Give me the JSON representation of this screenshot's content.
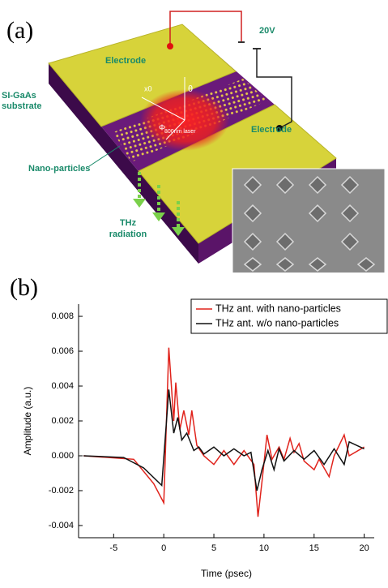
{
  "panel_a": {
    "label": "(a)",
    "electrode_left": "Electrode",
    "electrode_right": "Electrode",
    "substrate": "SI-GaAs substrate",
    "nano": "Nano-particles",
    "radiation": "THz radiation",
    "voltage": "20V",
    "laser": "800nm laser",
    "x0": "x0",
    "theta": "θ",
    "phi": "Φ"
  },
  "chart_data": {
    "type": "line",
    "panel_label": "(b)",
    "x_label": "Time (psec)",
    "y_label": "Amplitude (a.u.)",
    "xlim": [
      -8.5,
      21
    ],
    "xticks": [
      -5,
      0,
      5,
      10,
      15,
      20
    ],
    "ylim": [
      -0.0047,
      0.0087
    ],
    "yticks": [
      -0.004,
      -0.002,
      {
        "value": 0,
        "label": "0.000"
      },
      0.002,
      0.004,
      0.006,
      0.008
    ],
    "legend": "upper right",
    "series": [
      {
        "name": "THz ant. with nano-particles",
        "color": "#e0231c",
        "x": [
          -8,
          -3,
          -1,
          0,
          0.5,
          1,
          1.2,
          1.6,
          2,
          2.5,
          2.8,
          3.3,
          4,
          5,
          6,
          7,
          8,
          9,
          9.4,
          9.8,
          10.3,
          10.8,
          11.5,
          12,
          12.6,
          13,
          13.5,
          14,
          15,
          15.5,
          16.5,
          17,
          18,
          18.5,
          20
        ],
        "values": [
          0,
          -0.0002,
          -0.0016,
          -0.0027,
          0.0062,
          0.002,
          0.0042,
          0.0015,
          0.0026,
          0.0012,
          0.0026,
          0.0006,
          0,
          -0.0005,
          0.0003,
          -0.0005,
          0.0003,
          -0.0005,
          -0.0035,
          -0.0015,
          0.0012,
          -0.0002,
          0.0005,
          -0.0002,
          0.001,
          0.0002,
          0.0007,
          -0.0003,
          -0.0008,
          -0.0002,
          -0.0012,
          0,
          0.0012,
          0,
          0.0005
        ]
      },
      {
        "name": "THz ant. w/o nano-particles",
        "color": "#111111",
        "x": [
          -8,
          -4,
          -2,
          -0.2,
          0.5,
          1,
          1.4,
          1.8,
          2.3,
          3,
          3.5,
          4,
          5,
          6,
          7,
          8,
          8.7,
          9.3,
          9.8,
          10.4,
          11,
          11.5,
          12,
          13,
          14,
          15,
          16,
          17,
          18,
          18.5,
          20
        ],
        "values": [
          0,
          -0.0001,
          -0.0007,
          -0.0017,
          0.0038,
          0.0013,
          0.0022,
          0.0009,
          0.0013,
          0.0003,
          0.0005,
          0.0001,
          0.0005,
          0,
          0.0004,
          0,
          0.0002,
          -0.002,
          -0.0008,
          0.0003,
          -0.0008,
          0.0004,
          -0.0003,
          0.0003,
          -0.0002,
          0.0003,
          -0.0005,
          0.0004,
          -0.0005,
          0.0008,
          0.0004
        ]
      }
    ]
  }
}
